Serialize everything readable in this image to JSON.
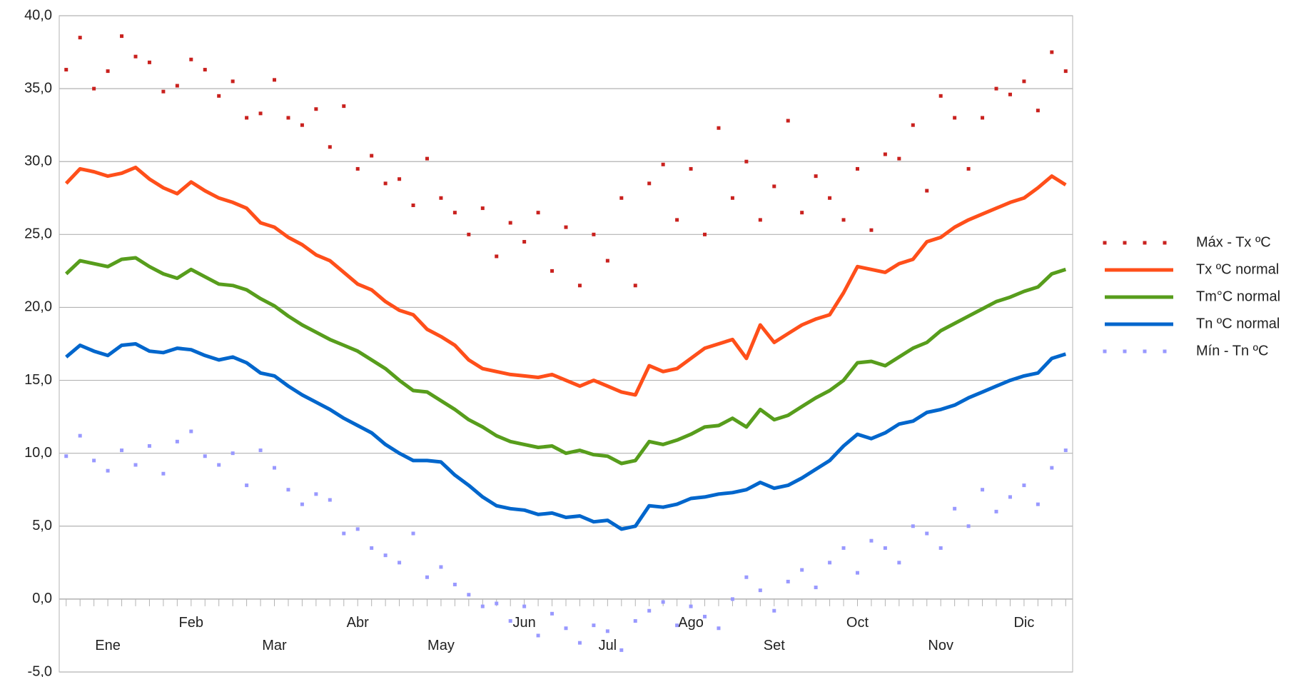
{
  "chart_data": {
    "type": "line",
    "categories": [
      null,
      null,
      null,
      "Ene",
      null,
      null,
      null,
      null,
      null,
      "Feb",
      null,
      null,
      null,
      null,
      null,
      "Mar",
      null,
      null,
      null,
      null,
      null,
      "Abr",
      null,
      null,
      null,
      null,
      null,
      "May",
      null,
      null,
      null,
      null,
      null,
      "Jun",
      null,
      null,
      null,
      null,
      null,
      "Jul",
      null,
      null,
      null,
      null,
      null,
      "Ago",
      null,
      null,
      null,
      null,
      null,
      "Set",
      null,
      null,
      null,
      null,
      null,
      "Oct",
      null,
      null,
      null,
      null,
      null,
      "Nov",
      null,
      null,
      null,
      null,
      null,
      "Dic",
      null,
      null,
      null
    ],
    "ylim": [
      -5,
      40
    ],
    "yticks": [
      {
        "value": -5,
        "label": "-5,0"
      },
      {
        "value": 0,
        "label": "0,0"
      },
      {
        "value": 5,
        "label": "5,0"
      },
      {
        "value": 10,
        "label": "10,0"
      },
      {
        "value": 15,
        "label": "15,0"
      },
      {
        "value": 20,
        "label": "20,0"
      },
      {
        "value": 25,
        "label": "25,0"
      },
      {
        "value": 30,
        "label": "30,0"
      },
      {
        "value": 35,
        "label": "35,0"
      },
      {
        "value": 40,
        "label": "40,0"
      }
    ],
    "grid": true,
    "legend": "right",
    "series": [
      {
        "name": "Máx - Tx ºC",
        "type": "scatter",
        "color": "#c9211e",
        "values": [
          36.3,
          38.5,
          35.0,
          36.2,
          38.6,
          37.2,
          36.8,
          34.8,
          35.2,
          37.0,
          36.3,
          34.5,
          35.5,
          33.0,
          33.3,
          35.6,
          33.0,
          32.5,
          33.6,
          31.0,
          33.8,
          29.5,
          30.4,
          28.5,
          28.8,
          27.0,
          30.2,
          27.5,
          26.5,
          25.0,
          26.8,
          23.5,
          25.8,
          24.5,
          26.5,
          22.5,
          25.5,
          21.5,
          25.0,
          23.2,
          27.5,
          21.5,
          28.5,
          29.8,
          26.0,
          29.5,
          25.0,
          32.3,
          27.5,
          30.0,
          26.0,
          28.3,
          32.8,
          26.5,
          29.0,
          27.5,
          26.0,
          29.5,
          25.3,
          30.5,
          30.2,
          32.5,
          28.0,
          34.5,
          33.0,
          29.5,
          33.0,
          35.0,
          34.6,
          35.5,
          33.5,
          37.5,
          36.2
        ]
      },
      {
        "name": "Tx ºC normal",
        "type": "line",
        "color": "#ff4f1a",
        "values": [
          28.5,
          29.5,
          29.3,
          29.0,
          29.2,
          29.6,
          28.8,
          28.2,
          27.8,
          28.6,
          28.0,
          27.5,
          27.2,
          26.8,
          25.8,
          25.5,
          24.8,
          24.3,
          23.6,
          23.2,
          22.4,
          21.6,
          21.2,
          20.4,
          19.8,
          19.5,
          18.5,
          18.0,
          17.4,
          16.4,
          15.8,
          15.6,
          15.4,
          15.3,
          15.2,
          15.4,
          15.0,
          14.6,
          15.0,
          14.6,
          14.2,
          14.0,
          16.0,
          15.6,
          15.8,
          16.5,
          17.2,
          17.5,
          17.8,
          16.5,
          18.8,
          17.6,
          18.2,
          18.8,
          19.2,
          19.5,
          21.0,
          22.8,
          22.6,
          22.4,
          23.0,
          23.3,
          24.5,
          24.8,
          25.5,
          26.0,
          26.4,
          26.8,
          27.2,
          27.5,
          28.2,
          29.0,
          28.4
        ]
      },
      {
        "name": "Tm°C normal",
        "type": "line",
        "color": "#579d1c",
        "values": [
          22.3,
          23.2,
          23.0,
          22.8,
          23.3,
          23.4,
          22.8,
          22.3,
          22.0,
          22.6,
          22.1,
          21.6,
          21.5,
          21.2,
          20.6,
          20.1,
          19.4,
          18.8,
          18.3,
          17.8,
          17.4,
          17.0,
          16.4,
          15.8,
          15.0,
          14.3,
          14.2,
          13.6,
          13.0,
          12.3,
          11.8,
          11.2,
          10.8,
          10.6,
          10.4,
          10.5,
          10.0,
          10.2,
          9.9,
          9.8,
          9.3,
          9.5,
          10.8,
          10.6,
          10.9,
          11.3,
          11.8,
          11.9,
          12.4,
          11.8,
          13.0,
          12.3,
          12.6,
          13.2,
          13.8,
          14.3,
          15.0,
          16.2,
          16.3,
          16.0,
          16.6,
          17.2,
          17.6,
          18.4,
          18.9,
          19.4,
          19.9,
          20.4,
          20.7,
          21.1,
          21.4,
          22.3,
          22.6
        ]
      },
      {
        "name": "Tn ºC normal",
        "type": "line",
        "color": "#0066cc",
        "values": [
          16.6,
          17.4,
          17.0,
          16.7,
          17.4,
          17.5,
          17.0,
          16.9,
          17.2,
          17.1,
          16.7,
          16.4,
          16.6,
          16.2,
          15.5,
          15.3,
          14.6,
          14.0,
          13.5,
          13.0,
          12.4,
          11.9,
          11.4,
          10.6,
          10.0,
          9.5,
          9.5,
          9.4,
          8.5,
          7.8,
          7.0,
          6.4,
          6.2,
          6.1,
          5.8,
          5.9,
          5.6,
          5.7,
          5.3,
          5.4,
          4.8,
          5.0,
          6.4,
          6.3,
          6.5,
          6.9,
          7.0,
          7.2,
          7.3,
          7.5,
          8.0,
          7.6,
          7.8,
          8.3,
          8.9,
          9.5,
          10.5,
          11.3,
          11.0,
          11.4,
          12.0,
          12.2,
          12.8,
          13.0,
          13.3,
          13.8,
          14.2,
          14.6,
          15.0,
          15.3,
          15.5,
          16.5,
          16.8
        ]
      },
      {
        "name": "Mín - Tn ºC",
        "type": "scatter",
        "color": "#9999ff",
        "values": [
          9.8,
          11.2,
          9.5,
          8.8,
          10.2,
          9.2,
          10.5,
          8.6,
          10.8,
          11.5,
          9.8,
          9.2,
          10.0,
          7.8,
          10.2,
          9.0,
          7.5,
          6.5,
          7.2,
          6.8,
          4.5,
          4.8,
          3.5,
          3.0,
          2.5,
          4.5,
          1.5,
          2.2,
          1.0,
          0.3,
          -0.5,
          -0.3,
          -1.5,
          -0.5,
          -2.5,
          -1.0,
          -2.0,
          -3.0,
          -1.8,
          -2.2,
          -3.5,
          -1.5,
          -0.8,
          -0.2,
          -1.8,
          -0.5,
          -1.2,
          -2.0,
          0.0,
          1.5,
          0.6,
          -0.8,
          1.2,
          2.0,
          0.8,
          2.5,
          3.5,
          1.8,
          4.0,
          3.5,
          2.5,
          5.0,
          4.5,
          3.5,
          6.2,
          5.0,
          7.5,
          6.0,
          7.0,
          7.8,
          6.5,
          9.0,
          10.2
        ]
      }
    ]
  }
}
